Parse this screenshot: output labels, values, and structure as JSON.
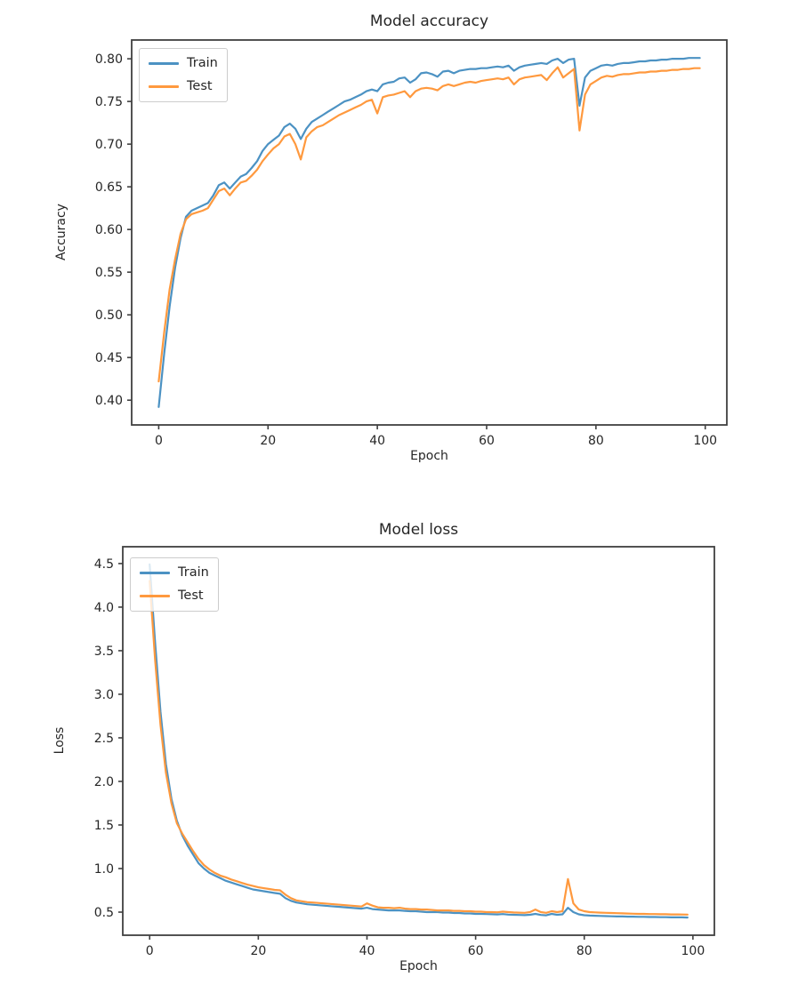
{
  "page": {
    "background": "#ffffff"
  },
  "epochs": [
    0,
    1,
    2,
    3,
    4,
    5,
    6,
    7,
    8,
    9,
    10,
    11,
    12,
    13,
    14,
    15,
    16,
    17,
    18,
    19,
    20,
    21,
    22,
    23,
    24,
    25,
    26,
    27,
    28,
    29,
    30,
    31,
    32,
    33,
    34,
    35,
    36,
    37,
    38,
    39,
    40,
    41,
    42,
    43,
    44,
    45,
    46,
    47,
    48,
    49,
    50,
    51,
    52,
    53,
    54,
    55,
    56,
    57,
    58,
    59,
    60,
    61,
    62,
    63,
    64,
    65,
    66,
    67,
    68,
    69,
    70,
    71,
    72,
    73,
    74,
    75,
    76,
    77,
    78,
    79,
    80,
    81,
    82,
    83,
    84,
    85,
    86,
    87,
    88,
    89,
    90,
    91,
    92,
    93,
    94,
    95,
    96,
    97,
    98,
    99
  ],
  "chart_data": [
    {
      "type": "line",
      "title": "Model accuracy",
      "xlabel": "Epoch",
      "ylabel": "Accuracy",
      "xlim": [
        -4.95,
        103.95
      ],
      "ylim": [
        0.371,
        0.822
      ],
      "grid": false,
      "x_ticks": {
        "values": [
          0,
          20,
          40,
          60,
          80,
          100
        ],
        "labels": [
          "0",
          "20",
          "40",
          "60",
          "80",
          "100"
        ]
      },
      "y_ticks": {
        "values": [
          0.4,
          0.45,
          0.5,
          0.55,
          0.6,
          0.65,
          0.7,
          0.75,
          0.8
        ],
        "labels": [
          "0.40",
          "0.45",
          "0.50",
          "0.55",
          "0.60",
          "0.65",
          "0.70",
          "0.75",
          "0.80"
        ]
      },
      "legend": {
        "location": "upper left",
        "labels": [
          "Train",
          "Test"
        ]
      },
      "series": [
        {
          "name": "Train",
          "color": "#4C92C3",
          "values": [
            0.392,
            0.455,
            0.51,
            0.555,
            0.59,
            0.615,
            0.622,
            0.625,
            0.628,
            0.631,
            0.64,
            0.652,
            0.655,
            0.648,
            0.655,
            0.662,
            0.665,
            0.672,
            0.68,
            0.692,
            0.7,
            0.705,
            0.71,
            0.72,
            0.724,
            0.718,
            0.706,
            0.718,
            0.726,
            0.73,
            0.734,
            0.738,
            0.742,
            0.746,
            0.75,
            0.752,
            0.755,
            0.758,
            0.762,
            0.764,
            0.762,
            0.77,
            0.772,
            0.773,
            0.777,
            0.778,
            0.772,
            0.776,
            0.783,
            0.784,
            0.782,
            0.779,
            0.785,
            0.786,
            0.783,
            0.786,
            0.787,
            0.788,
            0.788,
            0.789,
            0.789,
            0.79,
            0.791,
            0.79,
            0.792,
            0.786,
            0.79,
            0.792,
            0.793,
            0.794,
            0.795,
            0.794,
            0.798,
            0.8,
            0.795,
            0.799,
            0.8,
            0.745,
            0.778,
            0.786,
            0.789,
            0.792,
            0.793,
            0.792,
            0.794,
            0.795,
            0.795,
            0.796,
            0.797,
            0.797,
            0.798,
            0.798,
            0.799,
            0.799,
            0.8,
            0.8,
            0.8,
            0.801,
            0.801,
            0.801
          ]
        },
        {
          "name": "Test",
          "color": "#FF993E",
          "values": [
            0.422,
            0.48,
            0.53,
            0.565,
            0.595,
            0.612,
            0.618,
            0.62,
            0.622,
            0.625,
            0.635,
            0.645,
            0.648,
            0.64,
            0.648,
            0.655,
            0.657,
            0.663,
            0.67,
            0.68,
            0.688,
            0.695,
            0.7,
            0.709,
            0.712,
            0.7,
            0.682,
            0.708,
            0.715,
            0.72,
            0.722,
            0.726,
            0.73,
            0.734,
            0.737,
            0.74,
            0.743,
            0.746,
            0.75,
            0.752,
            0.736,
            0.755,
            0.757,
            0.758,
            0.76,
            0.762,
            0.755,
            0.762,
            0.765,
            0.766,
            0.765,
            0.763,
            0.768,
            0.77,
            0.768,
            0.77,
            0.772,
            0.773,
            0.772,
            0.774,
            0.775,
            0.776,
            0.777,
            0.776,
            0.778,
            0.77,
            0.776,
            0.778,
            0.779,
            0.78,
            0.781,
            0.775,
            0.783,
            0.79,
            0.778,
            0.783,
            0.788,
            0.716,
            0.758,
            0.77,
            0.774,
            0.778,
            0.78,
            0.779,
            0.781,
            0.782,
            0.782,
            0.783,
            0.784,
            0.784,
            0.785,
            0.785,
            0.786,
            0.786,
            0.787,
            0.787,
            0.788,
            0.788,
            0.789,
            0.789
          ]
        }
      ]
    },
    {
      "type": "line",
      "title": "Model loss",
      "xlabel": "Epoch",
      "ylabel": "Loss",
      "xlim": [
        -4.95,
        103.95
      ],
      "ylim": [
        0.235,
        4.693
      ],
      "grid": false,
      "x_ticks": {
        "values": [
          0,
          20,
          40,
          60,
          80,
          100
        ],
        "labels": [
          "0",
          "20",
          "40",
          "60",
          "80",
          "100"
        ]
      },
      "y_ticks": {
        "values": [
          0.5,
          1.0,
          1.5,
          2.0,
          2.5,
          3.0,
          3.5,
          4.0,
          4.5
        ],
        "labels": [
          "0.5",
          "1.0",
          "1.5",
          "2.0",
          "2.5",
          "3.0",
          "3.5",
          "4.0",
          "4.5"
        ]
      },
      "legend": {
        "location": "upper left",
        "labels": [
          "Train",
          "Test"
        ]
      },
      "series": [
        {
          "name": "Train",
          "color": "#4C92C3",
          "values": [
            4.49,
            3.6,
            2.8,
            2.2,
            1.8,
            1.55,
            1.38,
            1.26,
            1.16,
            1.06,
            1.0,
            0.95,
            0.92,
            0.89,
            0.86,
            0.84,
            0.82,
            0.8,
            0.78,
            0.76,
            0.75,
            0.74,
            0.73,
            0.72,
            0.71,
            0.66,
            0.63,
            0.61,
            0.6,
            0.59,
            0.585,
            0.58,
            0.575,
            0.57,
            0.565,
            0.56,
            0.555,
            0.55,
            0.545,
            0.54,
            0.55,
            0.535,
            0.53,
            0.525,
            0.52,
            0.52,
            0.52,
            0.515,
            0.51,
            0.51,
            0.505,
            0.5,
            0.5,
            0.5,
            0.495,
            0.495,
            0.49,
            0.49,
            0.485,
            0.485,
            0.48,
            0.48,
            0.478,
            0.476,
            0.474,
            0.478,
            0.472,
            0.47,
            0.468,
            0.466,
            0.47,
            0.48,
            0.468,
            0.464,
            0.48,
            0.47,
            0.475,
            0.55,
            0.5,
            0.475,
            0.465,
            0.46,
            0.458,
            0.456,
            0.454,
            0.452,
            0.45,
            0.45,
            0.448,
            0.448,
            0.446,
            0.446,
            0.444,
            0.444,
            0.442,
            0.442,
            0.44,
            0.44,
            0.44,
            0.438
          ]
        },
        {
          "name": "Test",
          "color": "#FF993E",
          "values": [
            4.3,
            3.4,
            2.65,
            2.1,
            1.75,
            1.52,
            1.4,
            1.3,
            1.2,
            1.11,
            1.04,
            0.99,
            0.95,
            0.92,
            0.9,
            0.875,
            0.855,
            0.835,
            0.815,
            0.8,
            0.785,
            0.775,
            0.765,
            0.755,
            0.75,
            0.7,
            0.66,
            0.635,
            0.625,
            0.615,
            0.61,
            0.605,
            0.6,
            0.595,
            0.59,
            0.585,
            0.58,
            0.575,
            0.57,
            0.565,
            0.6,
            0.575,
            0.555,
            0.55,
            0.55,
            0.545,
            0.55,
            0.54,
            0.535,
            0.535,
            0.53,
            0.53,
            0.525,
            0.52,
            0.52,
            0.52,
            0.515,
            0.515,
            0.51,
            0.51,
            0.505,
            0.505,
            0.5,
            0.5,
            0.498,
            0.505,
            0.5,
            0.496,
            0.494,
            0.492,
            0.5,
            0.53,
            0.5,
            0.492,
            0.51,
            0.5,
            0.51,
            0.88,
            0.6,
            0.53,
            0.51,
            0.5,
            0.497,
            0.494,
            0.492,
            0.49,
            0.488,
            0.486,
            0.484,
            0.482,
            0.48,
            0.48,
            0.478,
            0.478,
            0.476,
            0.476,
            0.474,
            0.474,
            0.473,
            0.472
          ]
        }
      ]
    }
  ]
}
